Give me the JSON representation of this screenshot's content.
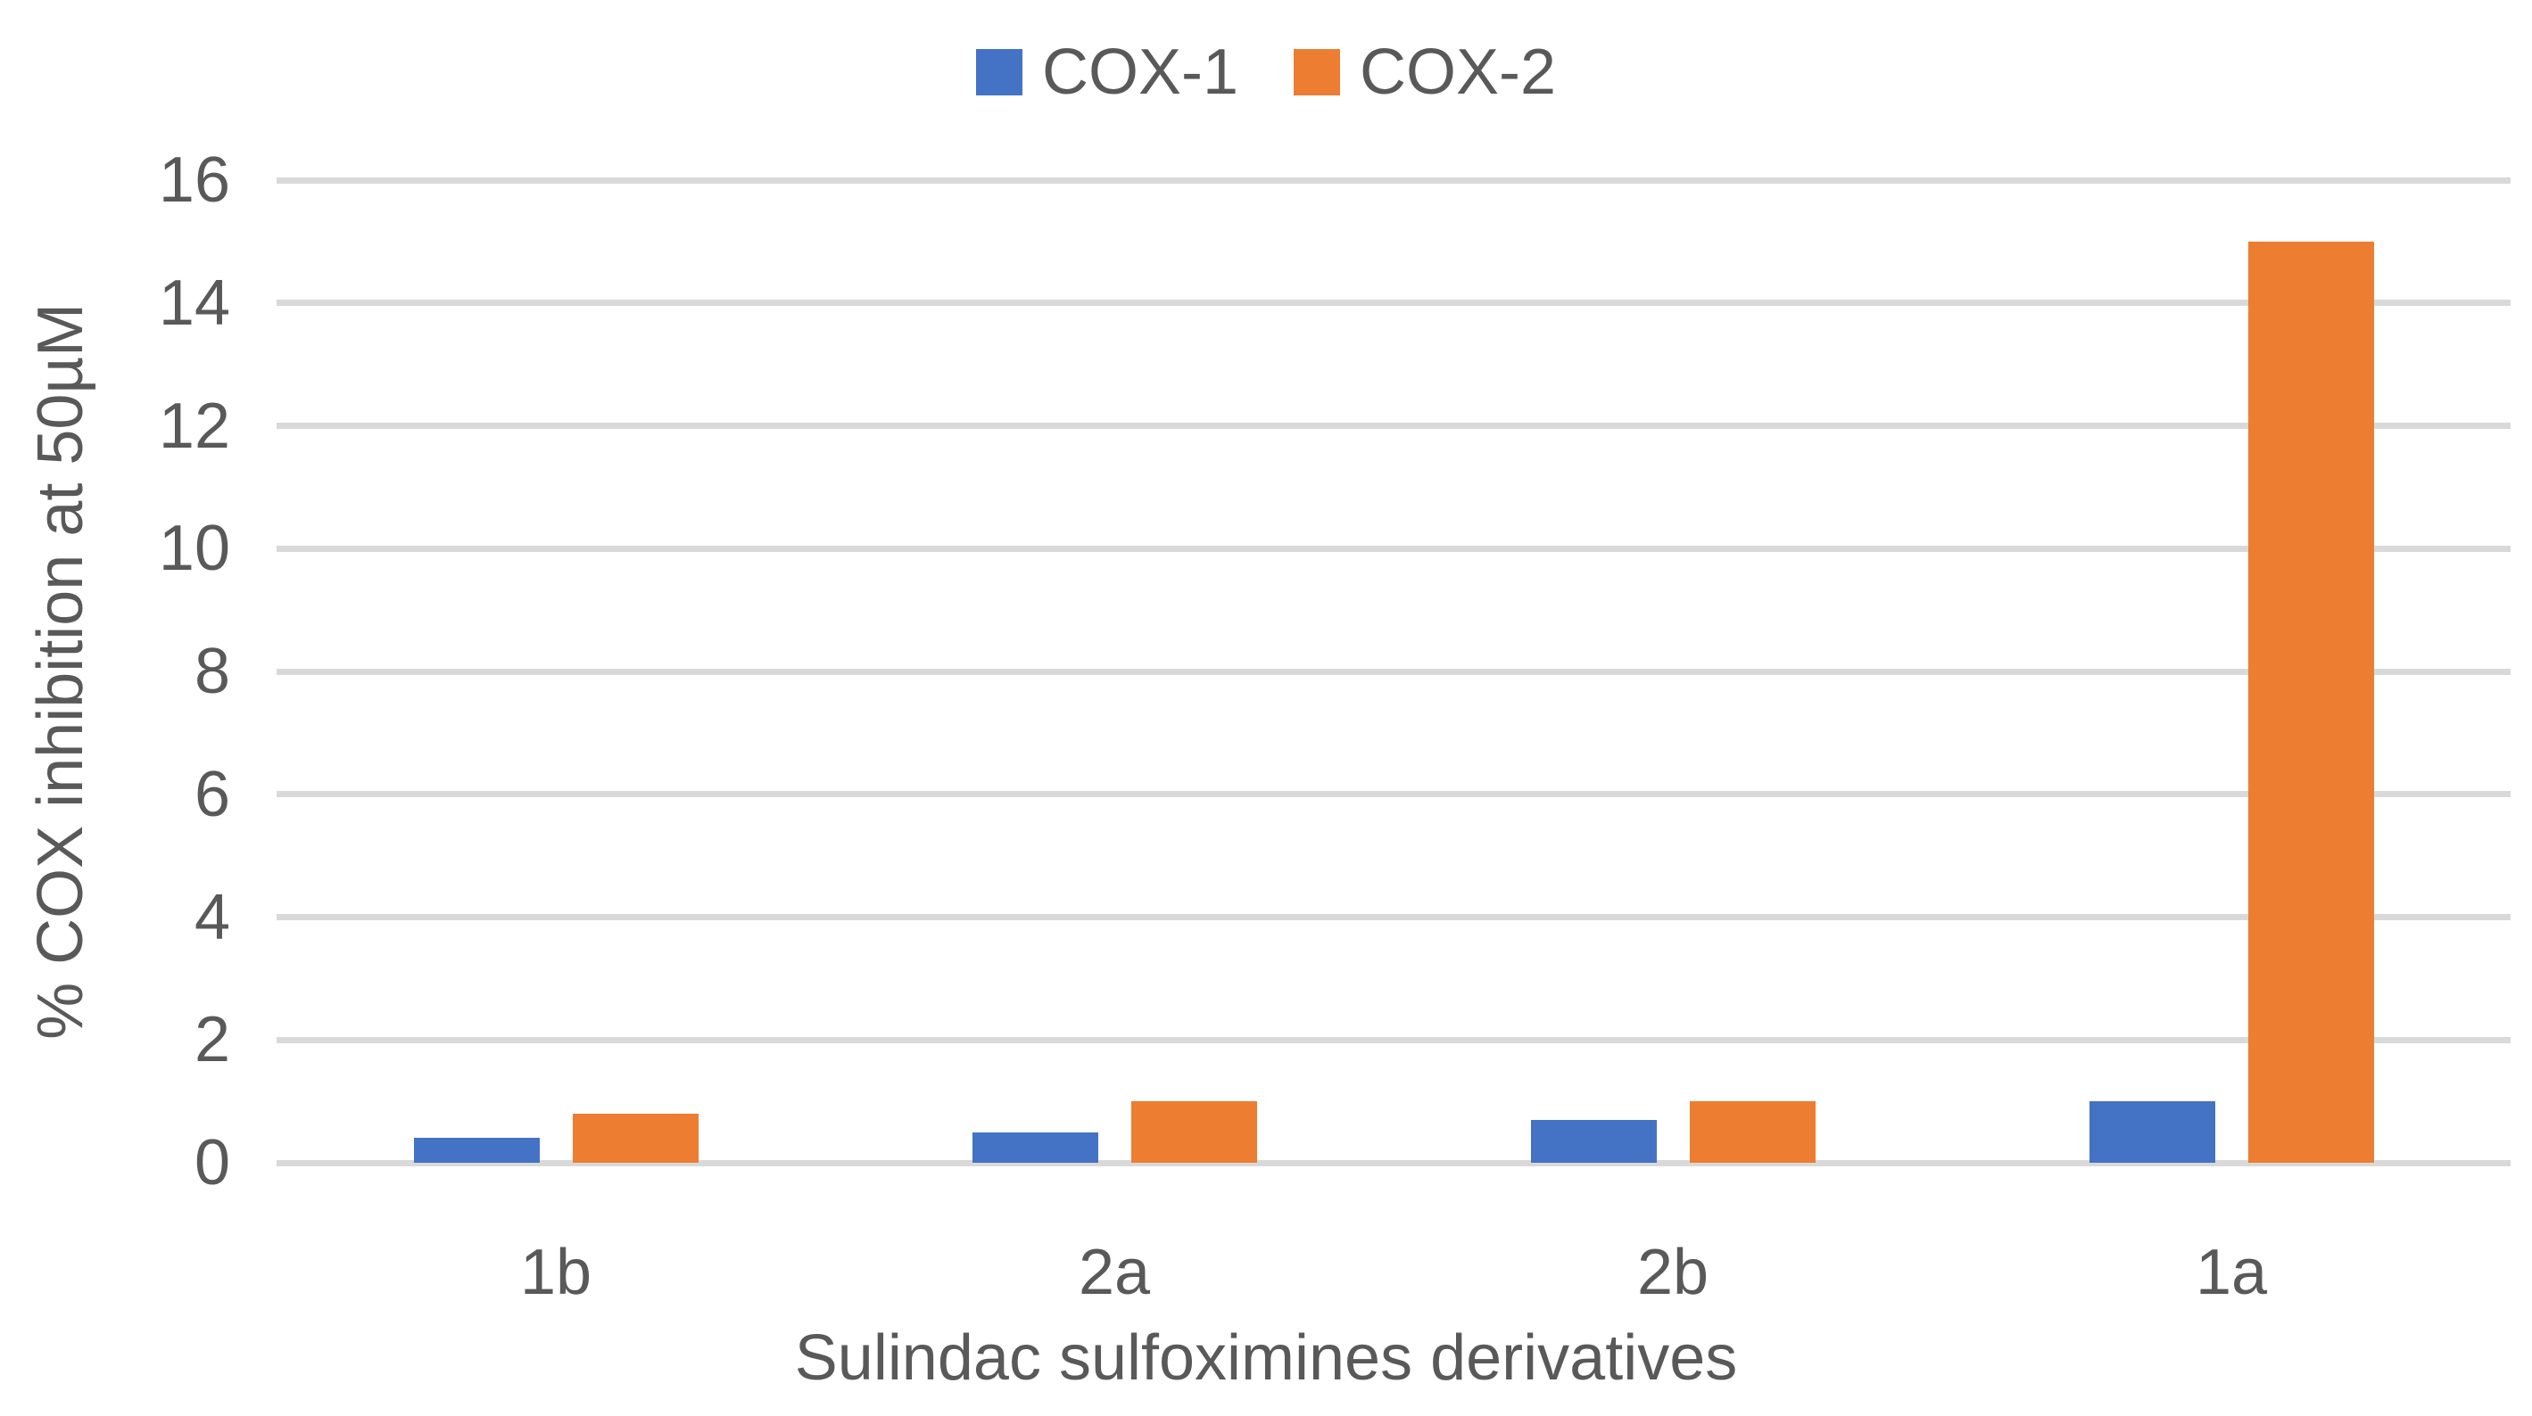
{
  "chart_data": {
    "type": "bar",
    "title": "",
    "categories": [
      "1b",
      "2a",
      "2b",
      "1a"
    ],
    "series": [
      {
        "name": "COX-1",
        "color": "#4472C4",
        "values": [
          0.4,
          0.5,
          0.7,
          1.0
        ]
      },
      {
        "name": "COX-2",
        "color": "#ED7D31",
        "values": [
          0.8,
          1.0,
          1.0,
          15.0
        ]
      }
    ],
    "xlabel": "Sulindac sulfoximines derivatives",
    "ylabel": "% COX inhibition at 50µM",
    "ylim": [
      0,
      16
    ],
    "ytick_step": 2,
    "yticks": [
      0,
      2,
      4,
      6,
      8,
      10,
      12,
      14,
      16
    ],
    "grid": true,
    "legend_position": "top",
    "colors": {
      "text": "#595959",
      "gridline": "#D9D9D9",
      "background": "#FFFFFF"
    }
  }
}
